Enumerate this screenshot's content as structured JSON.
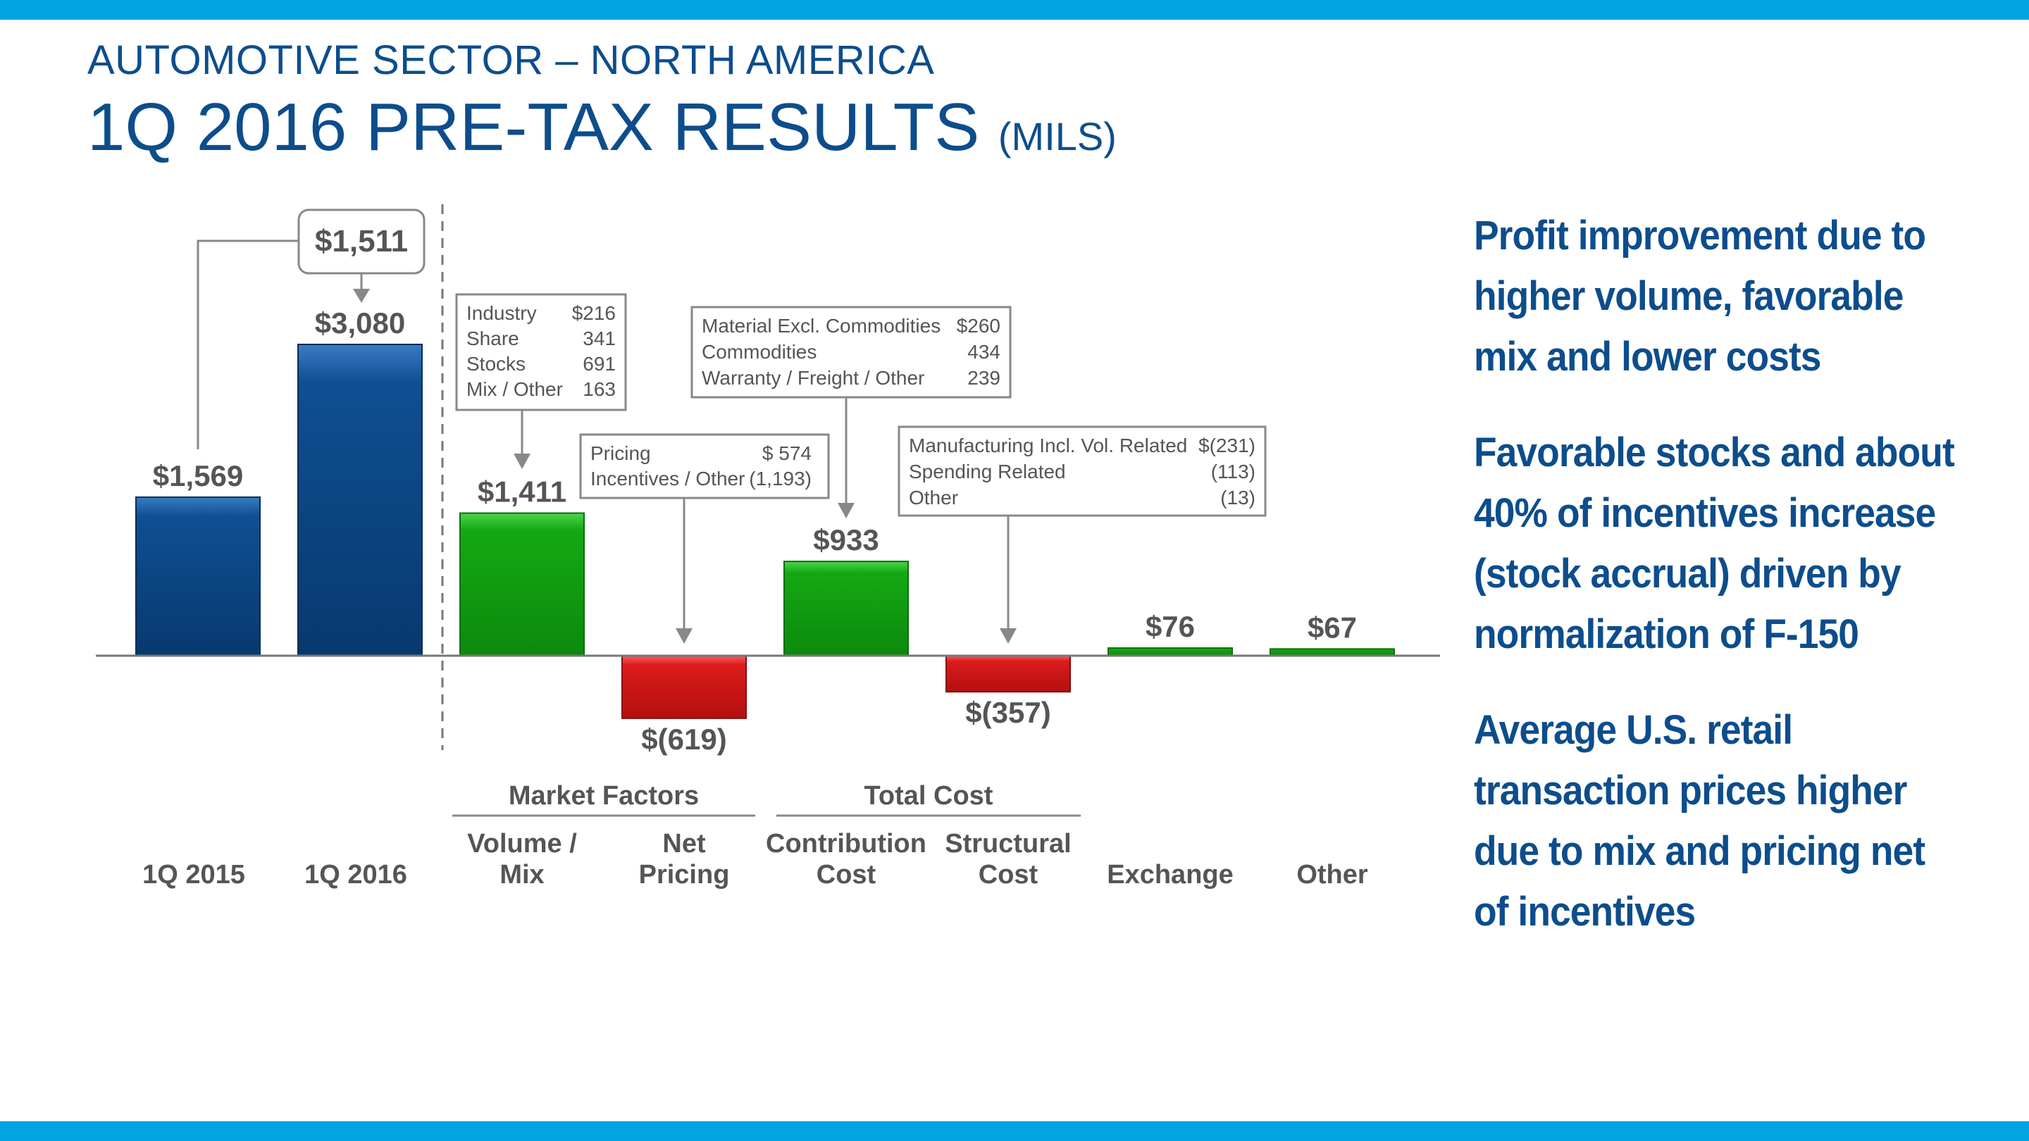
{
  "header": {
    "subtitle": "AUTOMOTIVE SECTOR – NORTH AMERICA",
    "title": "1Q 2016 PRE-TAX RESULTS",
    "title_unit": "(MILS)"
  },
  "colors": {
    "accent_band": "#00a4e0",
    "title": "#0d4d8c",
    "bar_base": "#0d4d8c",
    "bar_positive": "#14a014",
    "bar_negative": "#d81818",
    "label": "#555555"
  },
  "chart_data": {
    "type": "bar",
    "subtype": "waterfall",
    "categories": [
      "1Q 2015",
      "1Q 2016",
      "Volume / Mix",
      "Net Pricing",
      "Contribution Cost",
      "Structural Cost",
      "Exchange",
      "Other"
    ],
    "values": [
      1569,
      3080,
      1411,
      -619,
      933,
      -357,
      76,
      67
    ],
    "value_labels": [
      "$1,569",
      "$3,080",
      "$1,411",
      "$(619)",
      "$933",
      "$(357)",
      "$76",
      "$67"
    ],
    "kinds": [
      "base",
      "base",
      "positive",
      "negative",
      "positive",
      "negative",
      "positive",
      "positive"
    ],
    "category_labels": [
      [
        "1Q 2015"
      ],
      [
        "1Q 2016"
      ],
      [
        "Volume /",
        "Mix"
      ],
      [
        "Net",
        "Pricing"
      ],
      [
        "Contribution",
        "Cost"
      ],
      [
        "Structural",
        "Cost"
      ],
      [
        "Exchange"
      ],
      [
        "Other"
      ]
    ],
    "groups": [
      {
        "label": "Market Factors",
        "members": [
          "Volume / Mix",
          "Net Pricing"
        ]
      },
      {
        "label": "Total Cost",
        "members": [
          "Contribution Cost",
          "Structural Cost"
        ]
      }
    ],
    "change_label": "$1,511",
    "change_value": 1511,
    "ylim": [
      -700,
      3300
    ],
    "callouts": [
      {
        "target": "Volume / Mix",
        "rows": [
          [
            "Industry",
            "$216"
          ],
          [
            "Share",
            "341"
          ],
          [
            "Stocks",
            "691"
          ],
          [
            "Mix / Other",
            "163"
          ]
        ]
      },
      {
        "target": "Net Pricing",
        "rows": [
          [
            "Pricing",
            "$    574"
          ],
          [
            "Incentives / Other",
            "(1,193)"
          ]
        ]
      },
      {
        "target": "Contribution Cost",
        "rows": [
          [
            "Material Excl. Commodities",
            "$260"
          ],
          [
            "Commodities",
            "434"
          ],
          [
            "Warranty / Freight / Other",
            "239"
          ]
        ]
      },
      {
        "target": "Structural Cost",
        "rows": [
          [
            "Manufacturing Incl. Vol. Related",
            "$(231)"
          ],
          [
            "Spending Related",
            "(113)"
          ],
          [
            "Other",
            "(13)"
          ]
        ]
      }
    ]
  },
  "bullets": [
    "Profit improvement due to higher volume, favorable mix and lower costs",
    "Favorable stocks and about 40% of incentives increase (stock accrual) driven by normalization of F-150",
    "Average U.S. retail transaction prices higher due to mix and pricing net of incentives"
  ]
}
